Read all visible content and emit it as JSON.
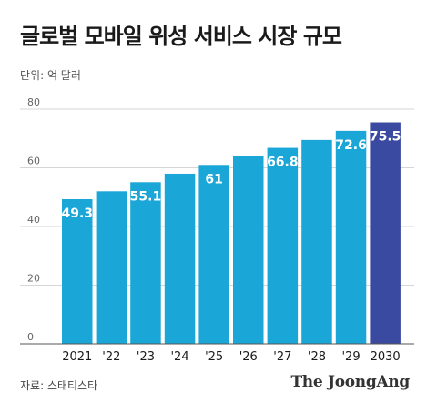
{
  "title": "글로벌 모바일 위성 서비스 시장 규모",
  "unit_label": "단위: 억 달러",
  "source": "자료: 스태티스타",
  "publisher": "The JoongAng",
  "colors": {
    "bar": "#1aa6d6",
    "highlight": "#3a4aa0",
    "grid": "#d6d6d6",
    "axis": "#555555",
    "label": "#ffffff"
  },
  "chart_data": {
    "type": "bar",
    "categories": [
      "2021",
      "'22",
      "'23",
      "'24",
      "'25",
      "'26",
      "'27",
      "'28",
      "'29",
      "2030"
    ],
    "values": [
      49.3,
      52,
      55.1,
      58,
      61,
      64,
      66.8,
      69.5,
      72.6,
      75.5
    ],
    "data_labels": [
      "49.3",
      "",
      "55.1",
      "",
      "61",
      "",
      "66.8",
      "",
      "72.6",
      "75.5"
    ],
    "highlight_index": 9,
    "ylim": [
      0,
      80
    ],
    "yticks": [
      0,
      20,
      40,
      60,
      80
    ],
    "grid": true,
    "legend": "none"
  }
}
